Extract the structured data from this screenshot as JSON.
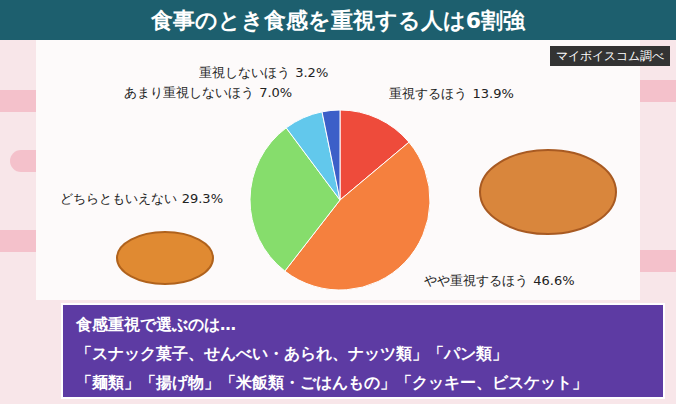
{
  "chart_data": {
    "type": "pie",
    "title": "食事のとき食感を重視する人は6割強",
    "source": "マイボイスコム調べ",
    "categories": [
      "重視するほう",
      "やや重視するほう",
      "どちらともいえない",
      "あまり重視しないほう",
      "重視しないほう"
    ],
    "values": [
      13.9,
      46.6,
      29.3,
      7.0,
      3.2
    ],
    "value_labels": [
      "13.9%",
      "46.6%",
      "29.3%",
      "7.0%",
      "3.2%"
    ],
    "colors": [
      "#ee4b3b",
      "#f5803e",
      "#86dd6c",
      "#62c8ec",
      "#3c5fc8"
    ],
    "data_labels": true,
    "annotations": [
      "食感重視で選ぶのは…",
      "「スナック菓子、せんべい・あられ、ナッツ類」「パン類」",
      "「麺類」「揚げ物」「米飯類・ごはんもの」「クッキー、ビスケット」"
    ]
  }
}
